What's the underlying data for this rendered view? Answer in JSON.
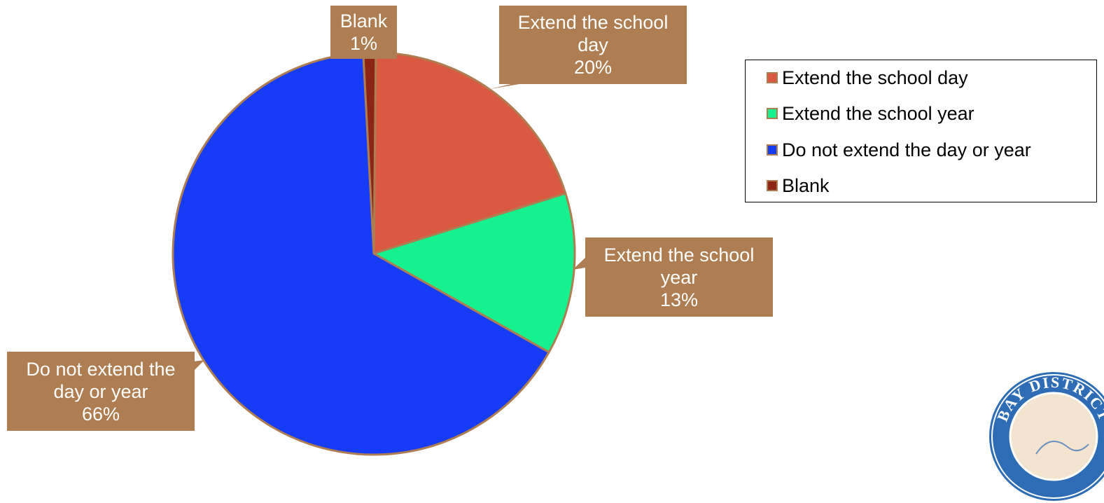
{
  "chart_data": {
    "type": "pie",
    "title": "",
    "slices": [
      {
        "label": "Extend the school day",
        "value": 20,
        "color": "#D95A41",
        "data_label": [
          "Extend the school",
          "day",
          "20%"
        ]
      },
      {
        "label": "Extend the school year",
        "value": 13,
        "color": "#14F18E",
        "data_label": [
          "Extend the school",
          "year",
          "13%"
        ]
      },
      {
        "label": "Do not extend the day or year",
        "value": 66,
        "color": "#163DF5",
        "data_label": [
          "Do not extend the",
          "day or year",
          "66%"
        ]
      },
      {
        "label": "Blank",
        "value": 1,
        "color": "#8C2516",
        "data_label": [
          "Blank",
          "1%"
        ]
      }
    ],
    "legend_position": "right",
    "slice_border_color": "#AE7D52",
    "label_box_color": "#AE7D52"
  },
  "seal": {
    "text": "DISTRICT",
    "partial_text": "BAY"
  }
}
